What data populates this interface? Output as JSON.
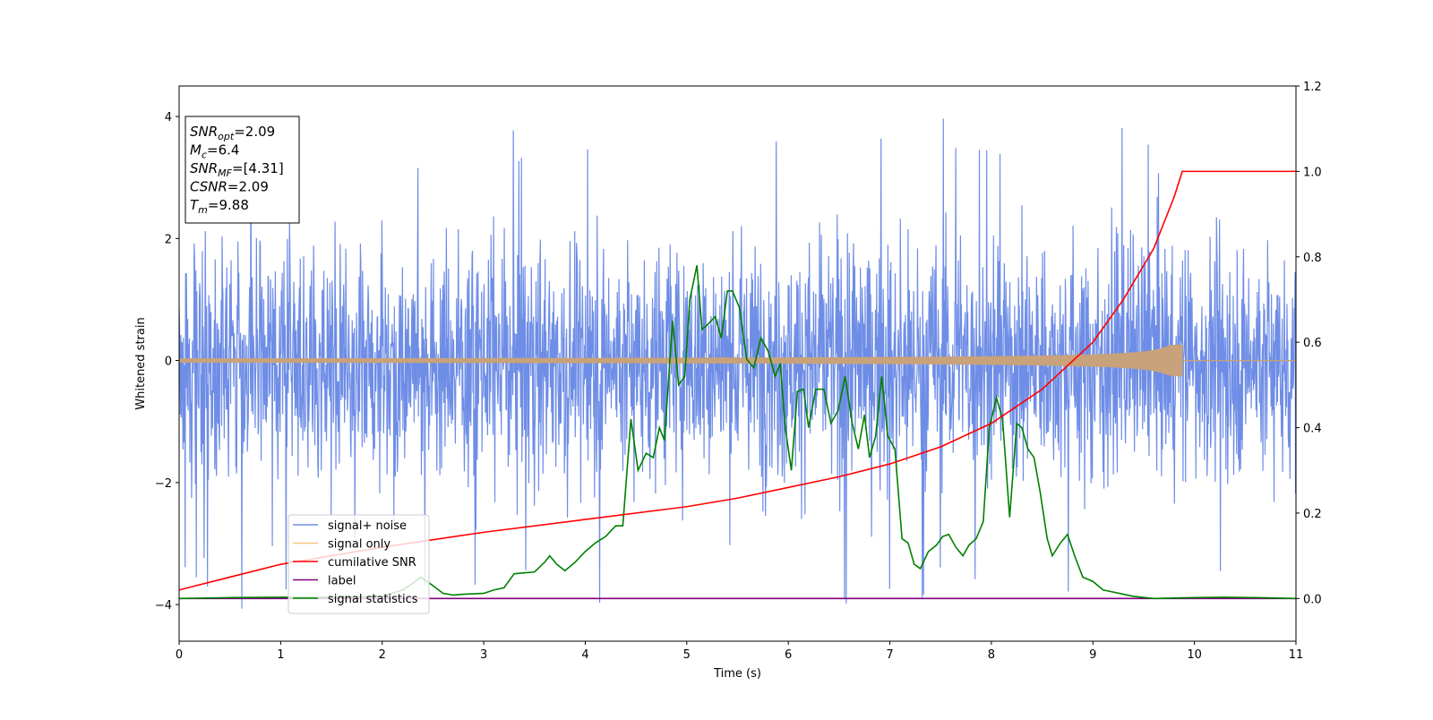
{
  "chart_data": {
    "type": "line",
    "xlabel": "Time (s)",
    "ylabel": "Whitened strain",
    "xlim": [
      0,
      11
    ],
    "ylim_left": [
      -4.6,
      4.5
    ],
    "ylim_right": [
      -0.1,
      1.2
    ],
    "xticks": [
      "0",
      "1",
      "2",
      "3",
      "4",
      "5",
      "6",
      "7",
      "8",
      "9",
      "10",
      "11"
    ],
    "yticks_left": [
      "4",
      "2",
      "0",
      "−2",
      "−4"
    ],
    "yticks_left_values": [
      4,
      2,
      0,
      -2,
      -4
    ],
    "yticks_right": [
      "1.2",
      "1.0",
      "0.8",
      "0.6",
      "0.4",
      "0.2",
      "0.0"
    ],
    "yticks_right_values": [
      1.2,
      1.0,
      0.8,
      0.6,
      0.4,
      0.2,
      0.0
    ],
    "grid": false,
    "legend_placement": "lower-left",
    "colors": {
      "signal_noise": "#6e8de6",
      "signal_only": "#c8a27a",
      "cumulative_snr": "#ff0000",
      "label": "#800080",
      "signal_statistics": "#008000"
    },
    "series": [
      {
        "name": "signal+ noise",
        "axis": "left",
        "description_values": {
          "t_start": 0,
          "t_end": 11,
          "typical_amplitude": 2.9,
          "outlier_peak": 4.1
        }
      },
      {
        "name": "signal only",
        "axis": "left",
        "chirp": {
          "t_start": 0,
          "t_merge": 9.88,
          "max_amplitude": 0.25
        }
      },
      {
        "name": "cumilative SNR",
        "axis": "right",
        "x": [
          0,
          1,
          2,
          3,
          4,
          5,
          5.5,
          6,
          6.5,
          7,
          7.5,
          8,
          8.5,
          9,
          9.3,
          9.6,
          9.8,
          9.88,
          11
        ],
        "y": [
          0.02,
          0.08,
          0.12,
          0.155,
          0.185,
          0.215,
          0.235,
          0.26,
          0.285,
          0.315,
          0.355,
          0.41,
          0.49,
          0.6,
          0.7,
          0.82,
          0.94,
          1.0,
          1.0
        ]
      },
      {
        "name": "label",
        "axis": "right",
        "x": [
          0,
          11
        ],
        "y": [
          0.0,
          0.0
        ]
      },
      {
        "name": "signal statistics",
        "axis": "right",
        "x": [
          0,
          0.5,
          1,
          1.5,
          2.0,
          2.2,
          2.3,
          2.38,
          2.5,
          2.6,
          2.7,
          2.8,
          3.0,
          3.1,
          3.2,
          3.3,
          3.4,
          3.5,
          3.6,
          3.65,
          3.72,
          3.8,
          3.9,
          4.0,
          4.1,
          4.2,
          4.3,
          4.37,
          4.45,
          4.52,
          4.6,
          4.67,
          4.73,
          4.78,
          4.86,
          4.92,
          4.98,
          5.03,
          5.1,
          5.15,
          5.2,
          5.28,
          5.34,
          5.4,
          5.45,
          5.52,
          5.59,
          5.66,
          5.73,
          5.8,
          5.87,
          5.92,
          5.97,
          6.03,
          6.09,
          6.15,
          6.2,
          6.27,
          6.35,
          6.42,
          6.49,
          6.56,
          6.63,
          6.69,
          6.75,
          6.8,
          6.86,
          6.92,
          6.98,
          7.05,
          7.12,
          7.18,
          7.24,
          7.3,
          7.38,
          7.46,
          7.52,
          7.58,
          7.65,
          7.72,
          7.78,
          7.85,
          7.92,
          7.98,
          8.05,
          8.11,
          8.18,
          8.25,
          8.3,
          8.36,
          8.42,
          8.48,
          8.55,
          8.6,
          8.68,
          8.75,
          8.82,
          8.9,
          9.0,
          9.1,
          9.2,
          9.3,
          9.4,
          9.6,
          10.0,
          10.3,
          10.6,
          11
        ],
        "y": [
          0.0,
          0.002,
          0.003,
          0.003,
          0.005,
          0.02,
          0.035,
          0.05,
          0.03,
          0.012,
          0.008,
          0.01,
          0.012,
          0.02,
          0.025,
          0.058,
          0.06,
          0.062,
          0.085,
          0.1,
          0.08,
          0.065,
          0.085,
          0.11,
          0.13,
          0.145,
          0.17,
          0.17,
          0.42,
          0.3,
          0.34,
          0.33,
          0.4,
          0.37,
          0.65,
          0.5,
          0.52,
          0.7,
          0.78,
          0.63,
          0.64,
          0.66,
          0.61,
          0.72,
          0.72,
          0.68,
          0.56,
          0.54,
          0.61,
          0.58,
          0.52,
          0.55,
          0.4,
          0.3,
          0.485,
          0.49,
          0.4,
          0.49,
          0.49,
          0.41,
          0.44,
          0.52,
          0.41,
          0.35,
          0.43,
          0.33,
          0.38,
          0.52,
          0.38,
          0.35,
          0.14,
          0.13,
          0.08,
          0.07,
          0.11,
          0.125,
          0.145,
          0.15,
          0.12,
          0.1,
          0.125,
          0.14,
          0.18,
          0.4,
          0.47,
          0.42,
          0.19,
          0.41,
          0.4,
          0.35,
          0.33,
          0.25,
          0.14,
          0.1,
          0.13,
          0.15,
          0.1,
          0.05,
          0.04,
          0.02,
          0.015,
          0.01,
          0.005,
          0.0,
          0.002,
          0.003,
          0.002,
          0.0
        ]
      }
    ],
    "annotation": {
      "lines": [
        {
          "var": "SNR",
          "sub": "opt",
          "value": "=2.09"
        },
        {
          "var": "M",
          "sub": "c",
          "value": "=6.4"
        },
        {
          "var": "SNR",
          "sub": "MF",
          "value": "=[4.31]"
        },
        {
          "var": "CSNR",
          "sub": "",
          "value": "=2.09"
        },
        {
          "var": "T",
          "sub": "m",
          "value": "=9.88"
        }
      ]
    }
  }
}
